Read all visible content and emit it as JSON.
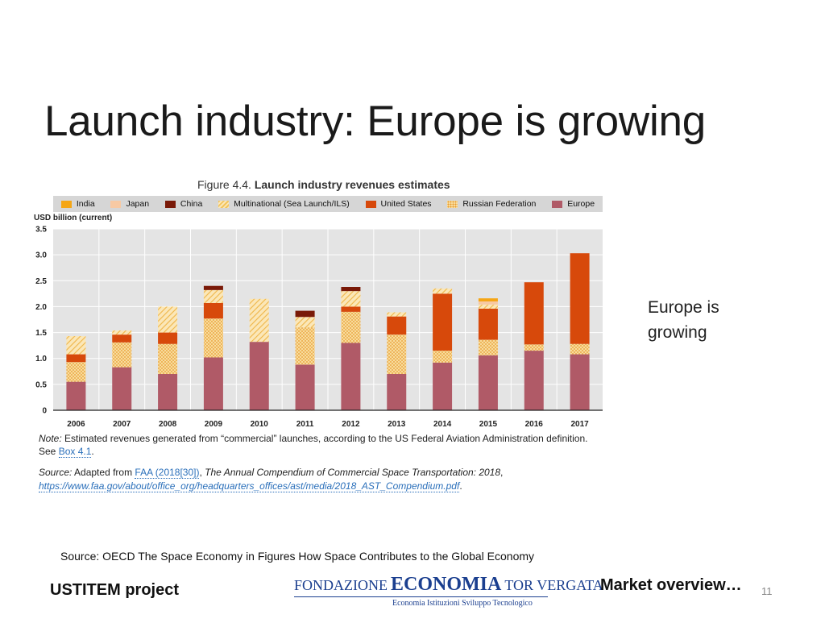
{
  "slide": {
    "title": "Launch industry: Europe is growing",
    "side_text": "Europe is growing",
    "source": "Source: OECD The Space Economy in Figures How Space Contributes to the Global Economy",
    "project": "USTITEM project",
    "market": "Market overview…",
    "page_number": "11",
    "logo": {
      "word1": "FONDAZIONE",
      "word2": "ECONOMIA",
      "word3": "TOR VERGATA",
      "subtitle": "Economia  Istituzioni  Sviluppo Tecnologico"
    }
  },
  "figure": {
    "number": "Figure 4.4.",
    "title": "Launch industry revenues estimates",
    "note_label": "Note:",
    "note_text": "Estimated revenues generated from “commercial” launches, according to the US Federal Aviation Administration definition. See",
    "note_link": "Box 4.1",
    "note_end": ".",
    "source_label": "Source:",
    "source_prefix": "Adapted from",
    "source_link": "FAA (2018[30])",
    "source_sep": ",",
    "source_title": "The Annual Compendium of Commercial Space Transportation: 2018",
    "source_comma": ",",
    "source_url": "https://www.faa.gov/about/office_org/headquarters_offices/ast/media/2018_AST_Compendium.pdf",
    "source_end": "."
  },
  "chart_data": {
    "type": "bar",
    "stacked": true,
    "ylabel": "USD billion (current)",
    "ylim": [
      0,
      3.5
    ],
    "yticks": [
      0,
      0.5,
      1.0,
      1.5,
      2.0,
      2.5,
      3.0,
      3.5
    ],
    "ytick_labels": [
      "0",
      "0.5",
      "1.0",
      "1.5",
      "2.0",
      "2.5",
      "3.0",
      "3.5"
    ],
    "grid": true,
    "legend_position": "top",
    "categories": [
      "2006",
      "2007",
      "2008",
      "2009",
      "2010",
      "2011",
      "2012",
      "2013",
      "2014",
      "2015",
      "2016",
      "2017"
    ],
    "series": [
      {
        "name": "Europe",
        "color": "#b05a67",
        "pattern": "solid",
        "values": [
          0.55,
          0.83,
          0.7,
          1.02,
          1.32,
          0.88,
          1.3,
          0.7,
          0.92,
          1.06,
          1.15,
          1.08
        ]
      },
      {
        "name": "Russian Federation",
        "color": "#f1b445",
        "pattern": "dots",
        "values": [
          0.38,
          0.48,
          0.58,
          0.75,
          0.0,
          0.72,
          0.6,
          0.76,
          0.23,
          0.3,
          0.12,
          0.2
        ]
      },
      {
        "name": "United States",
        "color": "#d7490b",
        "pattern": "solid",
        "values": [
          0.15,
          0.15,
          0.22,
          0.3,
          0.0,
          0.0,
          0.1,
          0.35,
          1.1,
          0.6,
          1.2,
          1.75
        ]
      },
      {
        "name": "Multinational (Sea Launch/ILS)",
        "color": "#f3c45c",
        "pattern": "hatch",
        "values": [
          0.35,
          0.08,
          0.5,
          0.25,
          0.83,
          0.2,
          0.3,
          0.08,
          0.1,
          0.08,
          0.0,
          0.0
        ]
      },
      {
        "name": "China",
        "color": "#7a1a08",
        "pattern": "solid",
        "values": [
          0.0,
          0.0,
          0.0,
          0.08,
          0.0,
          0.12,
          0.08,
          0.0,
          0.0,
          0.0,
          0.0,
          0.0
        ]
      },
      {
        "name": "Japan",
        "color": "#f7c9a3",
        "pattern": "solid",
        "values": [
          0.0,
          0.0,
          0.0,
          0.0,
          0.0,
          0.0,
          0.0,
          0.0,
          0.0,
          0.06,
          0.0,
          0.0
        ]
      },
      {
        "name": "India",
        "color": "#f5a616",
        "pattern": "solid",
        "values": [
          0.0,
          0.0,
          0.0,
          0.0,
          0.0,
          0.0,
          0.0,
          0.0,
          0.0,
          0.06,
          0.0,
          0.0
        ]
      }
    ],
    "legend_order": [
      "India",
      "Japan",
      "China",
      "Multinational (Sea Launch/ILS)",
      "United States",
      "Russian Federation",
      "Europe"
    ]
  }
}
